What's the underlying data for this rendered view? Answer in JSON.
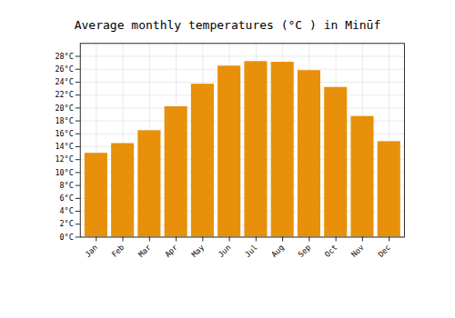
{
  "chart_data": {
    "type": "bar",
    "title": "Average monthly temperatures (°C ) in Minūf",
    "categories": [
      "Jan",
      "Feb",
      "Mar",
      "Apr",
      "May",
      "Jun",
      "Jul",
      "Aug",
      "Sep",
      "Oct",
      "Nov",
      "Dec"
    ],
    "values": [
      13,
      14.5,
      16.5,
      20.2,
      23.7,
      26.5,
      27.2,
      27.1,
      25.8,
      23.2,
      18.7,
      14.8
    ],
    "color": "#E8900A",
    "ylim": [
      0,
      30
    ],
    "yticks": [
      {
        "value": 0,
        "label": "0°C"
      },
      {
        "value": 2,
        "label": "2°C"
      },
      {
        "value": 4,
        "label": "4°C"
      },
      {
        "value": 6,
        "label": "6°C"
      },
      {
        "value": 8,
        "label": "8°C"
      },
      {
        "value": 10,
        "label": "10°C"
      },
      {
        "value": 12,
        "label": "12°C"
      },
      {
        "value": 14,
        "label": "14°C"
      },
      {
        "value": 16,
        "label": "16°C"
      },
      {
        "value": 18,
        "label": "18°C"
      },
      {
        "value": 20,
        "label": "20°C"
      },
      {
        "value": 22,
        "label": "22°C"
      },
      {
        "value": 24,
        "label": "24°C"
      },
      {
        "value": 26,
        "label": "26°C"
      },
      {
        "value": 28,
        "label": "28°C"
      }
    ],
    "grid": true
  }
}
